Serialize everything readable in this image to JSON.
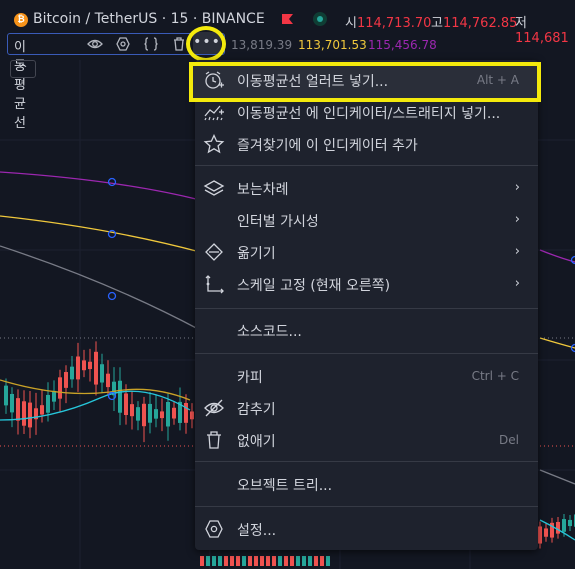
{
  "header": {
    "btc_glyph": "₿",
    "symbol_title": "Bitcoin / TetherUS · 15 · BINANCE",
    "ohlc": [
      {
        "key": "시",
        "value": "114,713.70"
      },
      {
        "key": "고",
        "value": "114,762.85"
      },
      {
        "key": "저",
        "value": "114,681"
      }
    ]
  },
  "indicator": {
    "name": "이동평균선",
    "more_label": "•••",
    "collapse_label": "^",
    "values": [
      {
        "text": "13,819.39",
        "color": "#787b86"
      },
      {
        "text": "113,701.53",
        "color": "#f0c83c"
      },
      {
        "text": "115,456.78",
        "color": "#9c27b0"
      }
    ]
  },
  "menu": {
    "items": [
      {
        "icon": "alarm-plus-icon",
        "label": "이동평균선 얼러트 넣기...",
        "shortcut": "Alt + A"
      },
      {
        "icon": "indicator-icon",
        "label": "이동평균선 에 인디케이터/스트래티지 넣기..."
      },
      {
        "icon": "star-icon",
        "label": "즐겨찾기에 이 인디케이터 추가"
      },
      {
        "icon": "layers-icon",
        "label": "보는차례",
        "submenu": true
      },
      {
        "icon": "",
        "label": "인터벌 가시성",
        "submenu": true
      },
      {
        "icon": "move-icon",
        "label": "옮기기",
        "submenu": true
      },
      {
        "icon": "scale-icon",
        "label": "스케일 고정 (현재 오른쪽)",
        "submenu": true
      },
      {
        "icon": "",
        "label": "소스코드..."
      },
      {
        "icon": "",
        "label": "카피",
        "shortcut": "Ctrl + C"
      },
      {
        "icon": "eye-off-icon",
        "label": "감추기"
      },
      {
        "icon": "trash-icon",
        "label": "없애기",
        "shortcut": "Del"
      },
      {
        "icon": "",
        "label": "오브젝트 트리..."
      },
      {
        "icon": "gear-icon",
        "label": "설정..."
      }
    ]
  },
  "colors": {
    "background": "#131722",
    "menu_bg": "#1e222d",
    "highlight": "#f4ea0c",
    "up": "#26a69a",
    "down": "#ef5350",
    "ma_purple": "#9c27b0",
    "ma_yellow": "#f0c83c",
    "ma_gray": "#787b86",
    "ma_teal": "#26c6da"
  }
}
